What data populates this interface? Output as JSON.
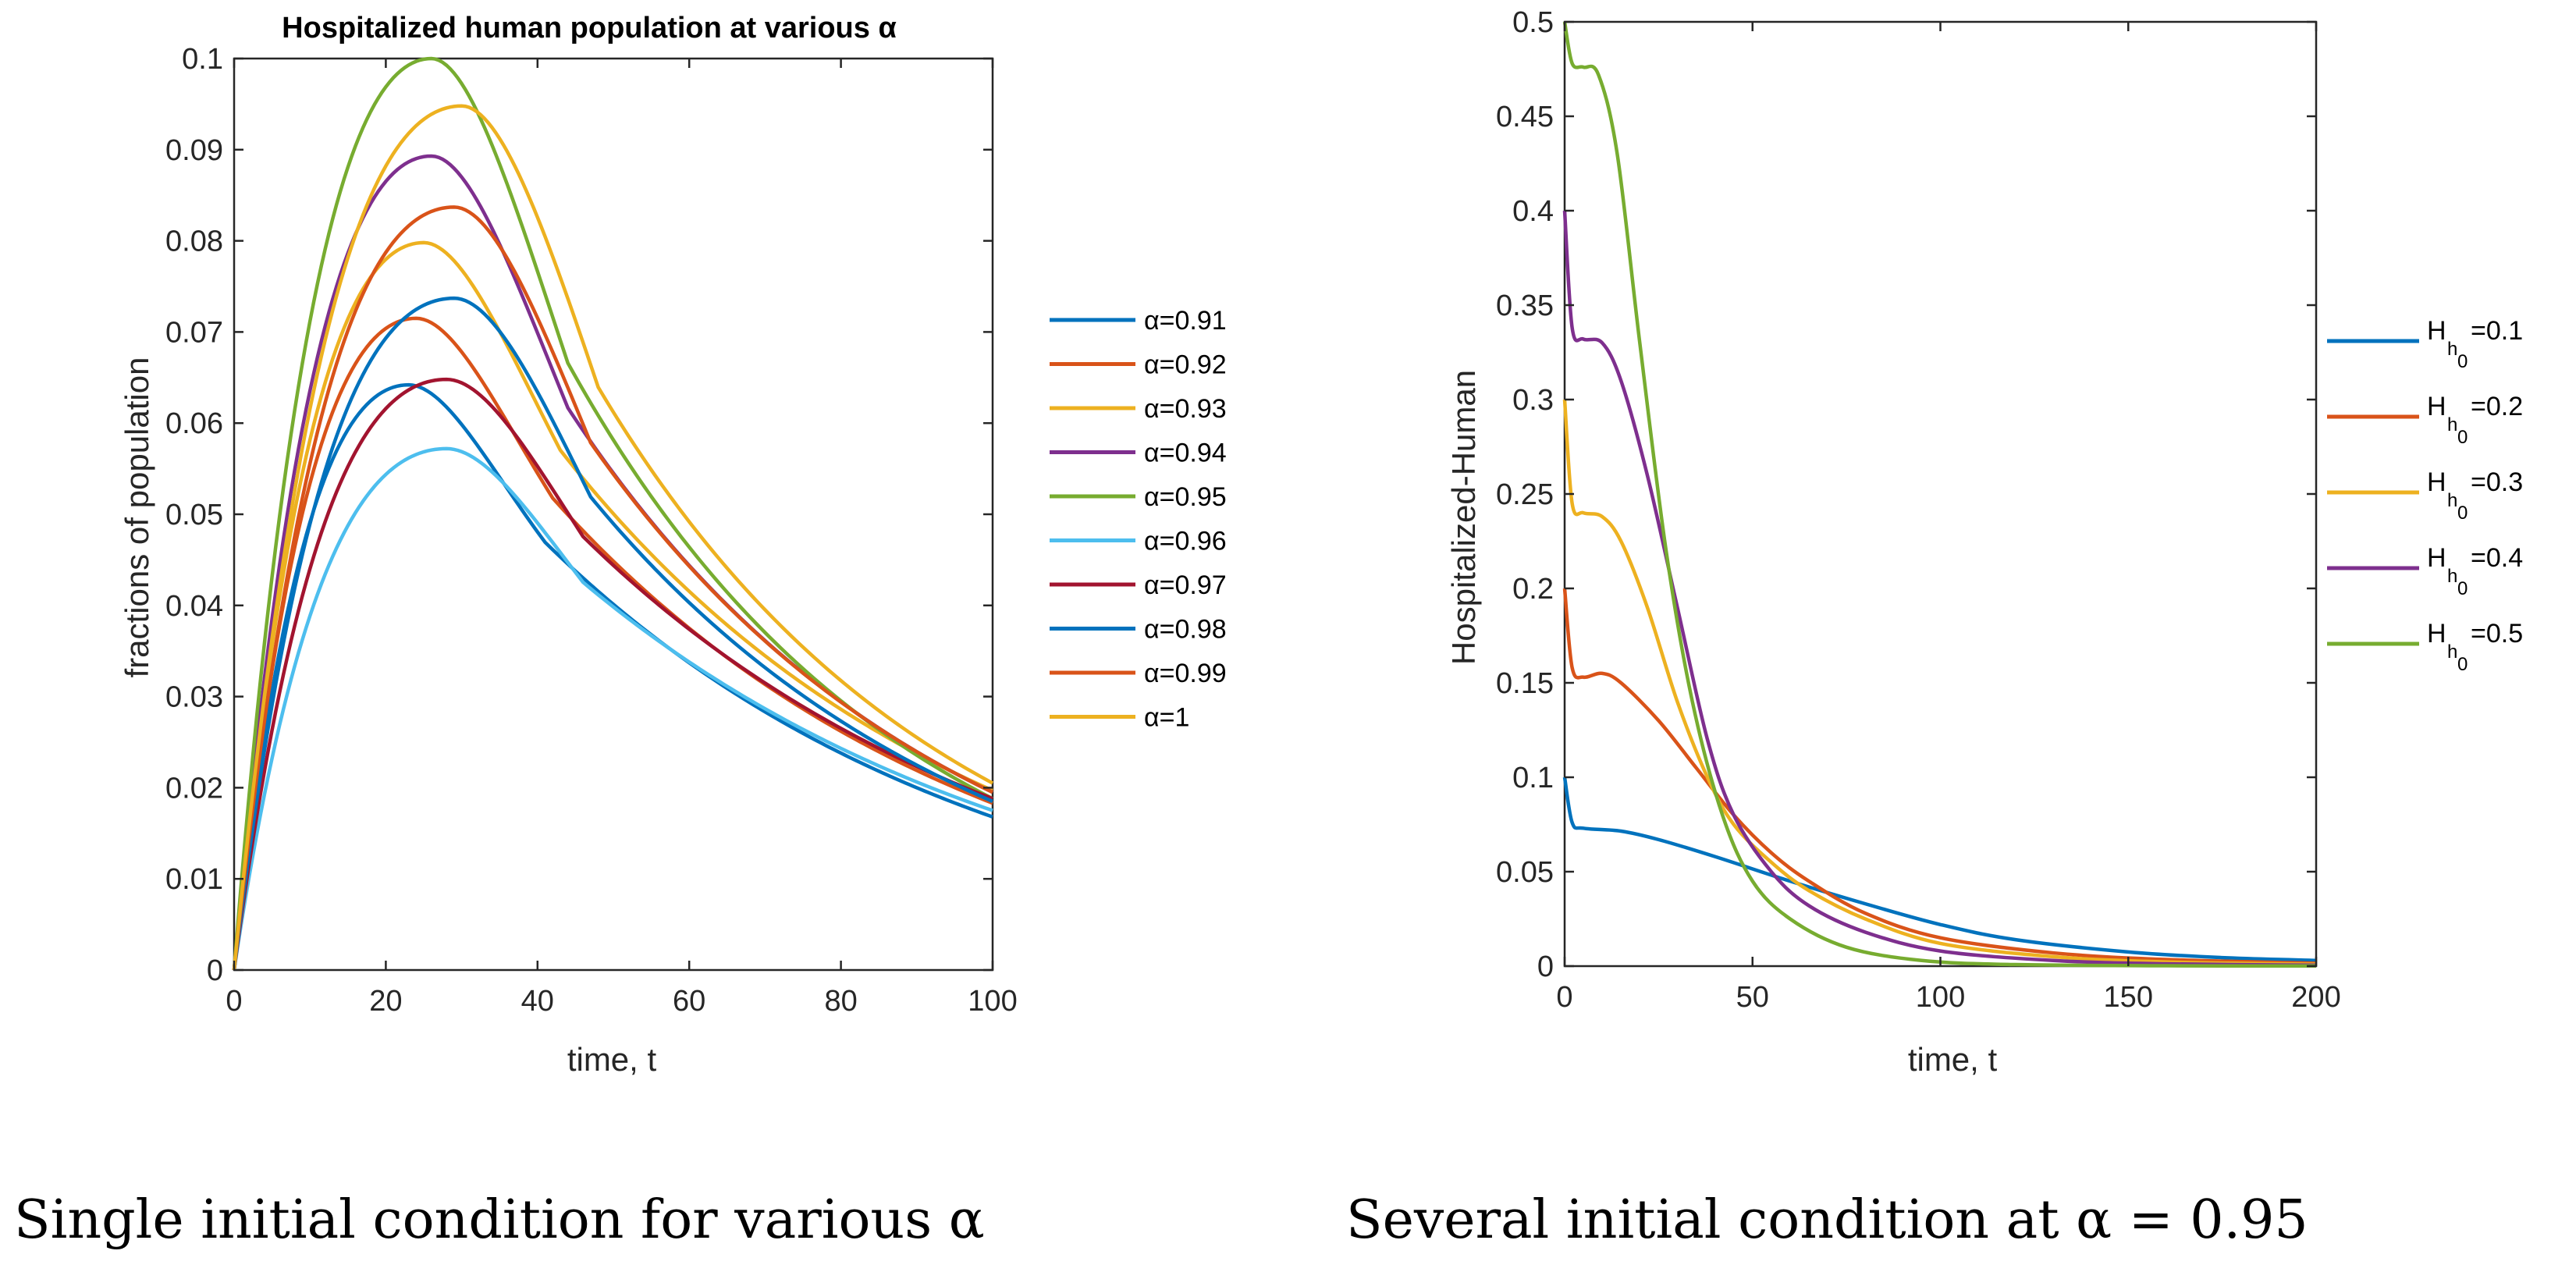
{
  "captions": {
    "left": "Single initial condition for various α",
    "right": "Several initial condition at α = 0.95"
  },
  "chart_data": [
    {
      "type": "line",
      "title": "Hospitalized human population at various α",
      "xlabel": "time, t",
      "ylabel": "fractions of population",
      "xlim": [
        0,
        100
      ],
      "ylim": [
        0,
        0.1
      ],
      "xticks": [
        0,
        20,
        40,
        60,
        80,
        100
      ],
      "yticks": [
        0,
        0.01,
        0.02,
        0.03,
        0.04,
        0.05,
        0.06,
        0.07,
        0.08,
        0.09,
        0.1
      ],
      "legend_position": "right-outside",
      "series": [
        {
          "name": "α=0.91",
          "color": "#0072BD",
          "peak_t": 23,
          "peak_y": 0.0642,
          "end_y": 0.0168
        },
        {
          "name": "α=0.92",
          "color": "#D95319",
          "peak_t": 24,
          "peak_y": 0.0715,
          "end_y": 0.0183
        },
        {
          "name": "α=0.93",
          "color": "#EDB120",
          "peak_t": 25,
          "peak_y": 0.0798,
          "end_y": 0.0197
        },
        {
          "name": "α=0.94",
          "color": "#7E2F8E",
          "peak_t": 26,
          "peak_y": 0.0893,
          "end_y": 0.0195
        },
        {
          "name": "α=0.95",
          "color": "#77AC30",
          "peak_t": 26,
          "peak_y": 0.1,
          "end_y": 0.0188
        },
        {
          "name": "α=0.96",
          "color": "#4DBEEE",
          "peak_t": 28,
          "peak_y": 0.0572,
          "end_y": 0.0175
        },
        {
          "name": "α=0.97",
          "color": "#A2142F",
          "peak_t": 28,
          "peak_y": 0.0648,
          "end_y": 0.0188
        },
        {
          "name": "α=0.98",
          "color": "#0072BD",
          "peak_t": 29,
          "peak_y": 0.0737,
          "end_y": 0.0185
        },
        {
          "name": "α=0.99",
          "color": "#D95319",
          "peak_t": 29,
          "peak_y": 0.0837,
          "end_y": 0.0195
        },
        {
          "name": "α=1",
          "color": "#EDB120",
          "peak_t": 30,
          "peak_y": 0.0948,
          "end_y": 0.0205
        }
      ]
    },
    {
      "type": "line",
      "title": "",
      "xlabel": "time, t",
      "ylabel": "Hospitalized-Human",
      "xlim": [
        0,
        200
      ],
      "ylim": [
        0,
        0.5
      ],
      "xticks": [
        0,
        50,
        100,
        150,
        200
      ],
      "yticks": [
        0,
        0.05,
        0.1,
        0.15,
        0.2,
        0.25,
        0.3,
        0.35,
        0.4,
        0.45,
        0.5
      ],
      "legend_position": "right-outside",
      "series": [
        {
          "name_main": "H",
          "name_sub": "h",
          "name_subsub": "0",
          "name_tail": "=0.1",
          "color": "#0072BD",
          "h0": 0.1,
          "plateau": 0.073,
          "points": [
            [
              0,
              0.1
            ],
            [
              2,
              0.076
            ],
            [
              5,
              0.073
            ],
            [
              15,
              0.0715
            ],
            [
              25,
              0.067
            ],
            [
              40,
              0.058
            ],
            [
              60,
              0.045
            ],
            [
              80,
              0.033
            ],
            [
              100,
              0.022
            ],
            [
              120,
              0.014
            ],
            [
              150,
              0.0075
            ],
            [
              175,
              0.0045
            ],
            [
              200,
              0.003
            ]
          ]
        },
        {
          "name_main": "H",
          "name_sub": "h",
          "name_subsub": "0",
          "name_tail": "=0.2",
          "color": "#D95319",
          "h0": 0.2,
          "plateau": 0.155,
          "points": [
            [
              0,
              0.2
            ],
            [
              2,
              0.158
            ],
            [
              5,
              0.153
            ],
            [
              10,
              0.155
            ],
            [
              15,
              0.15
            ],
            [
              25,
              0.13
            ],
            [
              35,
              0.105
            ],
            [
              45,
              0.08
            ],
            [
              55,
              0.06
            ],
            [
              65,
              0.045
            ],
            [
              80,
              0.028
            ],
            [
              100,
              0.015
            ],
            [
              130,
              0.007
            ],
            [
              160,
              0.0035
            ],
            [
              200,
              0.0015
            ]
          ]
        },
        {
          "name_main": "H",
          "name_sub": "h",
          "name_subsub": "0",
          "name_tail": "=0.3",
          "color": "#EDB120",
          "h0": 0.3,
          "plateau": 0.24,
          "points": [
            [
              0,
              0.3
            ],
            [
              2,
              0.245
            ],
            [
              5,
              0.24
            ],
            [
              10,
              0.238
            ],
            [
              15,
              0.225
            ],
            [
              22,
              0.19
            ],
            [
              30,
              0.14
            ],
            [
              38,
              0.1
            ],
            [
              45,
              0.075
            ],
            [
              55,
              0.055
            ],
            [
              65,
              0.04
            ],
            [
              80,
              0.025
            ],
            [
              100,
              0.012
            ],
            [
              130,
              0.005
            ],
            [
              160,
              0.0022
            ],
            [
              200,
              0.001
            ]
          ]
        },
        {
          "name_main": "H",
          "name_sub": "h",
          "name_subsub": "0",
          "name_tail": "=0.4",
          "color": "#7E2F8E",
          "h0": 0.4,
          "plateau": 0.332,
          "points": [
            [
              0,
              0.4
            ],
            [
              2,
              0.338
            ],
            [
              5,
              0.332
            ],
            [
              10,
              0.33
            ],
            [
              15,
              0.31
            ],
            [
              22,
              0.26
            ],
            [
              30,
              0.19
            ],
            [
              38,
              0.12
            ],
            [
              45,
              0.08
            ],
            [
              55,
              0.05
            ],
            [
              65,
              0.032
            ],
            [
              80,
              0.018
            ],
            [
              100,
              0.008
            ],
            [
              130,
              0.003
            ],
            [
              160,
              0.0012
            ],
            [
              200,
              0.0005
            ]
          ]
        },
        {
          "name_main": "H",
          "name_sub": "h",
          "name_subsub": "0",
          "name_tail": "=0.5",
          "color": "#77AC30",
          "h0": 0.5,
          "plateau": 0.476,
          "points": [
            [
              0,
              0.5
            ],
            [
              2,
              0.478
            ],
            [
              5,
              0.476
            ],
            [
              9,
              0.472
            ],
            [
              14,
              0.43
            ],
            [
              20,
              0.33
            ],
            [
              27,
              0.22
            ],
            [
              34,
              0.14
            ],
            [
              42,
              0.08
            ],
            [
              50,
              0.045
            ],
            [
              60,
              0.025
            ],
            [
              75,
              0.01
            ],
            [
              95,
              0.003
            ],
            [
              120,
              0.0008
            ],
            [
              160,
              0.0002
            ],
            [
              200,
              0.0001
            ]
          ]
        }
      ]
    }
  ]
}
